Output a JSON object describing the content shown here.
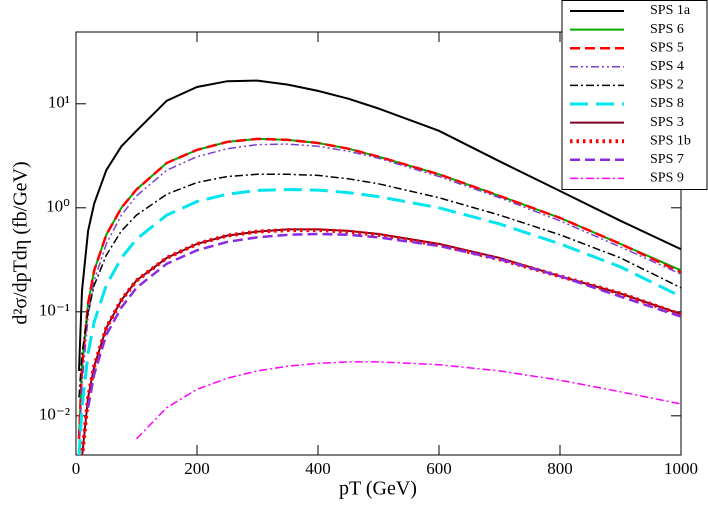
{
  "chart_data": {
    "type": "line",
    "x_label": "pT (GeV)",
    "y_label": "d²σ/dpTdη (fb/GeV)",
    "yscale": "log",
    "x": [
      5,
      10,
      20,
      30,
      50,
      75,
      100,
      150,
      200,
      250,
      300,
      350,
      400,
      450,
      500,
      600,
      700,
      800,
      900,
      1000
    ],
    "xlim": [
      0,
      1000
    ],
    "xticks": [
      0,
      200,
      400,
      600,
      800,
      1000
    ],
    "ylim": [
      0.0042,
      49
    ],
    "yticks": [
      {
        "value": 0.01,
        "label": "10⁻²"
      },
      {
        "value": 0.1,
        "label": "10⁻¹"
      },
      {
        "value": 1,
        "label": "10⁰"
      },
      {
        "value": 10,
        "label": "10¹"
      }
    ],
    "legend": "upper right",
    "series": [
      {
        "name": "SPS 1a",
        "color": "#000000",
        "style": "solid",
        "values": [
          0.027,
          0.16,
          0.6,
          1.1,
          2.3,
          3.9,
          5.5,
          10.7,
          14.5,
          16.5,
          16.7,
          15.3,
          13.3,
          11.2,
          9,
          5.5,
          2.8,
          1.45,
          0.75,
          0.4
        ]
      },
      {
        "name": "SPS 6",
        "color": "#00aa00",
        "style": "solid",
        "values": [
          0.006,
          0.03,
          0.12,
          0.25,
          0.55,
          1.0,
          1.5,
          2.7,
          3.6,
          4.3,
          4.6,
          4.5,
          4.2,
          3.7,
          3.1,
          2.1,
          1.3,
          0.8,
          0.45,
          0.25
        ]
      },
      {
        "name": "SPS 5",
        "color": "#ff0000",
        "style": "dashed",
        "values": [
          0.006,
          0.03,
          0.12,
          0.25,
          0.55,
          1.0,
          1.5,
          2.7,
          3.6,
          4.3,
          4.6,
          4.5,
          4.2,
          3.7,
          3.1,
          2.1,
          1.3,
          0.8,
          0.45,
          0.24
        ]
      },
      {
        "name": "SPS 4",
        "color": "#7b3fd0",
        "style": "dashdotdot",
        "values": [
          0.004,
          0.02,
          0.09,
          0.2,
          0.45,
          0.85,
          1.3,
          2.3,
          3.1,
          3.7,
          4.05,
          4.1,
          3.9,
          3.5,
          3.0,
          2.0,
          1.25,
          0.75,
          0.42,
          0.23
        ]
      },
      {
        "name": "SPS 2",
        "color": "#000000",
        "style": "dashdot",
        "values": [
          0.015,
          0.04,
          0.1,
          0.18,
          0.35,
          0.6,
          0.85,
          1.35,
          1.75,
          2.0,
          2.1,
          2.1,
          2.05,
          1.9,
          1.7,
          1.25,
          0.85,
          0.55,
          0.33,
          0.17
        ]
      },
      {
        "name": "SPS 8",
        "color": "#00e5ee",
        "style": "longdash",
        "values": [
          0.004,
          0.012,
          0.04,
          0.08,
          0.18,
          0.33,
          0.5,
          0.85,
          1.15,
          1.35,
          1.47,
          1.5,
          1.48,
          1.4,
          1.28,
          1.0,
          0.7,
          0.45,
          0.27,
          0.14
        ]
      },
      {
        "name": "SPS 3",
        "color": "#800020",
        "style": "solid",
        "values": [
          null,
          0.004,
          0.015,
          0.03,
          0.07,
          0.13,
          0.2,
          0.33,
          0.45,
          0.54,
          0.59,
          0.62,
          0.62,
          0.6,
          0.56,
          0.45,
          0.33,
          0.22,
          0.15,
          0.095
        ]
      },
      {
        "name": "SPS 1b",
        "color": "#ff0000",
        "style": "dotted",
        "values": [
          null,
          0.004,
          0.015,
          0.03,
          0.07,
          0.13,
          0.2,
          0.33,
          0.45,
          0.54,
          0.59,
          0.61,
          0.61,
          0.59,
          0.55,
          0.44,
          0.32,
          0.22,
          0.15,
          0.094
        ]
      },
      {
        "name": "SPS 7",
        "color": "#8a2be2",
        "style": "dashed",
        "values": [
          null,
          null,
          0.012,
          0.025,
          0.06,
          0.11,
          0.17,
          0.29,
          0.39,
          0.47,
          0.52,
          0.55,
          0.56,
          0.55,
          0.52,
          0.43,
          0.32,
          0.22,
          0.14,
          0.09
        ]
      },
      {
        "name": "SPS 9",
        "color": "#ff00ff",
        "style": "dashdot",
        "values": [
          null,
          null,
          null,
          null,
          null,
          null,
          0.006,
          0.012,
          0.018,
          0.023,
          0.027,
          0.03,
          0.032,
          0.033,
          0.033,
          0.031,
          0.027,
          0.022,
          0.017,
          0.013
        ]
      }
    ]
  }
}
